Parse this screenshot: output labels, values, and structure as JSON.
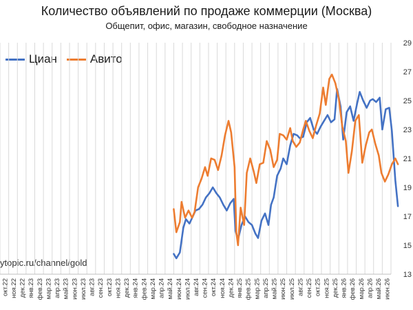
{
  "chart_data": {
    "type": "line",
    "title": "Количество объявлений по продаже коммерции (Москва)",
    "subtitle": "Общепит, офис, магазин, свободное назначение",
    "watermark": "ytopic.ru/channel/gold",
    "ylim": [
      13,
      29
    ],
    "yticks": [
      "13",
      "15",
      "17",
      "19",
      "21",
      "23",
      "25",
      "27",
      "29"
    ],
    "grid": "vertical",
    "legend_position": "top-left",
    "categories": [
      "окт.22",
      "ноя.22",
      "дек.22",
      "янв.23",
      "фев.23",
      "мар.23",
      "апр.23",
      "май.23",
      "июн.23",
      "июл.23",
      "авг.23",
      "сен.23",
      "окт.23",
      "ноя.23",
      "дек.23",
      "янв.24",
      "фев.24",
      "мар.24",
      "апр.24",
      "май.24",
      "июн.24",
      "июл.24",
      "авг.24",
      "сен.24",
      "окт.24",
      "ноя.24",
      "дек.24",
      "янв.25",
      "фев.25",
      "мар.25",
      "апр.25",
      "май.25",
      "июн.25",
      "июл.25",
      "авг.25",
      "сен.25",
      "окт.25",
      "ноя.25",
      "дек.25",
      "янв.26",
      "фев.26",
      "мар.26",
      "апр.26",
      "май.26",
      "июн.26"
    ],
    "series": [
      {
        "name": "Циан",
        "color": "#4472c4",
        "points": [
          [
            19.5,
            14.4
          ],
          [
            19.8,
            14.1
          ],
          [
            20.2,
            14.5
          ],
          [
            20.6,
            16.2
          ],
          [
            20.9,
            16.8
          ],
          [
            21.3,
            16.5
          ],
          [
            21.7,
            17.0
          ],
          [
            22.0,
            17.4
          ],
          [
            22.4,
            17.5
          ],
          [
            22.8,
            17.8
          ],
          [
            23.2,
            18.3
          ],
          [
            23.6,
            18.6
          ],
          [
            24.0,
            19.0
          ],
          [
            24.4,
            18.6
          ],
          [
            24.8,
            18.3
          ],
          [
            25.2,
            17.8
          ],
          [
            25.6,
            17.4
          ],
          [
            26.0,
            17.9
          ],
          [
            26.4,
            18.2
          ],
          [
            26.6,
            16.0
          ],
          [
            26.9,
            15.4
          ],
          [
            27.3,
            16.4
          ],
          [
            27.7,
            17.0
          ],
          [
            28.1,
            16.6
          ],
          [
            28.5,
            16.4
          ],
          [
            28.9,
            15.8
          ],
          [
            29.2,
            15.5
          ],
          [
            29.6,
            16.7
          ],
          [
            30.0,
            17.2
          ],
          [
            30.4,
            16.4
          ],
          [
            30.7,
            17.8
          ],
          [
            31.0,
            18.3
          ],
          [
            31.4,
            19.8
          ],
          [
            31.8,
            20.3
          ],
          [
            32.1,
            21.0
          ],
          [
            32.5,
            20.6
          ],
          [
            32.9,
            21.9
          ],
          [
            33.3,
            22.7
          ],
          [
            33.7,
            22.6
          ],
          [
            34.0,
            22.4
          ],
          [
            34.4,
            22.5
          ],
          [
            34.8,
            23.5
          ],
          [
            35.2,
            23.8
          ],
          [
            35.6,
            23.0
          ],
          [
            36.0,
            22.7
          ],
          [
            36.4,
            23.2
          ],
          [
            36.8,
            23.6
          ],
          [
            37.2,
            24.0
          ],
          [
            37.6,
            23.5
          ],
          [
            38.0,
            23.7
          ],
          [
            38.3,
            25.8
          ],
          [
            38.7,
            24.6
          ],
          [
            39.0,
            22.3
          ],
          [
            39.4,
            24.2
          ],
          [
            39.8,
            24.6
          ],
          [
            40.2,
            23.6
          ],
          [
            40.6,
            24.8
          ],
          [
            40.9,
            25.6
          ],
          [
            41.3,
            25.0
          ],
          [
            41.7,
            24.5
          ],
          [
            42.1,
            25.0
          ],
          [
            42.4,
            25.1
          ],
          [
            42.8,
            24.9
          ],
          [
            43.2,
            25.2
          ],
          [
            43.5,
            23.0
          ],
          [
            43.9,
            24.4
          ],
          [
            44.3,
            24.5
          ],
          [
            44.6,
            22.9
          ],
          [
            45.0,
            19.5
          ],
          [
            45.3,
            17.7
          ]
        ]
      },
      {
        "name": "Авито",
        "color": "#ed7d31",
        "points": [
          [
            19.5,
            17.5
          ],
          [
            19.8,
            15.9
          ],
          [
            20.2,
            16.6
          ],
          [
            20.4,
            18.0
          ],
          [
            20.8,
            16.9
          ],
          [
            21.2,
            17.4
          ],
          [
            21.6,
            16.9
          ],
          [
            21.9,
            17.3
          ],
          [
            22.3,
            19.0
          ],
          [
            22.7,
            19.6
          ],
          [
            23.1,
            20.4
          ],
          [
            23.4,
            19.8
          ],
          [
            23.8,
            21.0
          ],
          [
            24.2,
            20.9
          ],
          [
            24.6,
            20.2
          ],
          [
            25.0,
            21.2
          ],
          [
            25.4,
            22.6
          ],
          [
            25.8,
            23.6
          ],
          [
            26.1,
            22.8
          ],
          [
            26.5,
            20.4
          ],
          [
            26.7,
            15.9
          ],
          [
            26.9,
            15.0
          ],
          [
            27.2,
            17.6
          ],
          [
            27.6,
            16.4
          ],
          [
            27.9,
            20.0
          ],
          [
            28.3,
            21.0
          ],
          [
            28.7,
            20.1
          ],
          [
            29.0,
            19.3
          ],
          [
            29.4,
            20.6
          ],
          [
            29.8,
            20.7
          ],
          [
            30.2,
            22.2
          ],
          [
            30.6,
            21.6
          ],
          [
            31.0,
            20.4
          ],
          [
            31.4,
            20.9
          ],
          [
            31.7,
            22.7
          ],
          [
            32.1,
            22.6
          ],
          [
            32.5,
            22.3
          ],
          [
            32.9,
            23.1
          ],
          [
            33.2,
            22.2
          ],
          [
            33.6,
            21.8
          ],
          [
            34.0,
            22.1
          ],
          [
            34.4,
            23.0
          ],
          [
            34.7,
            23.6
          ],
          [
            35.1,
            22.9
          ],
          [
            35.5,
            22.4
          ],
          [
            35.9,
            23.3
          ],
          [
            36.3,
            24.1
          ],
          [
            36.7,
            25.9
          ],
          [
            37.0,
            24.7
          ],
          [
            37.4,
            26.5
          ],
          [
            37.7,
            26.8
          ],
          [
            38.1,
            26.2
          ],
          [
            38.5,
            25.1
          ],
          [
            38.9,
            23.2
          ],
          [
            39.3,
            22.2
          ],
          [
            39.6,
            20.0
          ],
          [
            40.0,
            21.5
          ],
          [
            40.4,
            23.6
          ],
          [
            40.8,
            24.0
          ],
          [
            41.2,
            20.7
          ],
          [
            41.6,
            21.9
          ],
          [
            42.0,
            22.8
          ],
          [
            42.3,
            23.0
          ],
          [
            42.7,
            22.0
          ],
          [
            43.1,
            21.2
          ],
          [
            43.4,
            20.0
          ],
          [
            43.8,
            19.4
          ],
          [
            44.2,
            19.9
          ],
          [
            44.6,
            20.6
          ],
          [
            45.0,
            21.0
          ],
          [
            45.3,
            20.6
          ]
        ]
      }
    ]
  }
}
